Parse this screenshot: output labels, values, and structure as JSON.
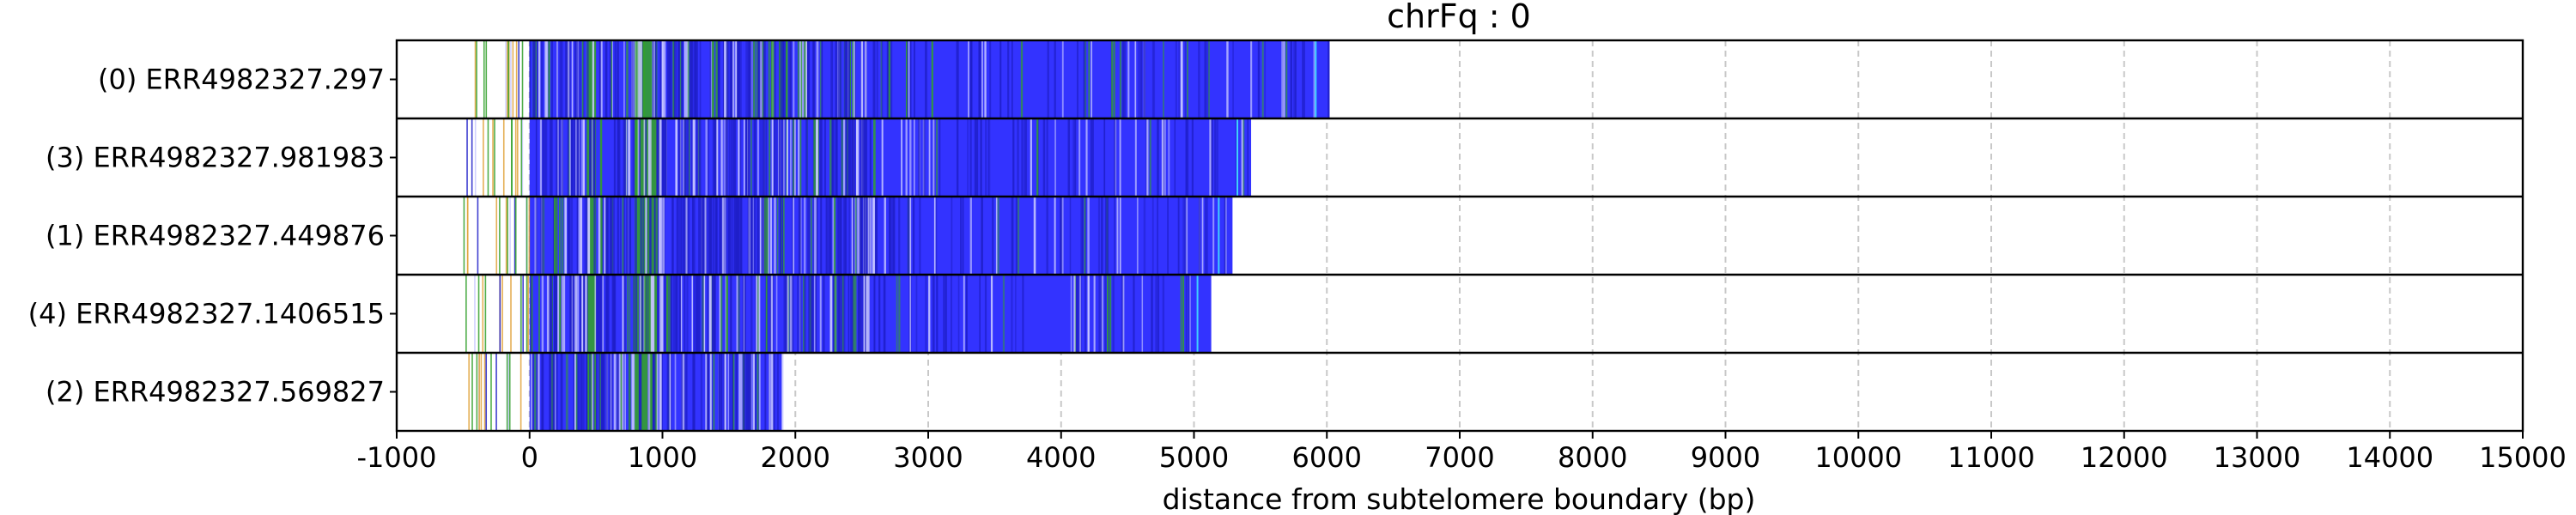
{
  "chart_data": {
    "type": "bar",
    "title": "chrFq : 0",
    "xlabel": "distance from subtelomere boundary (bp)",
    "ylabel": "",
    "xlim": [
      -1000,
      15000
    ],
    "xticks": [
      -1000,
      0,
      1000,
      2000,
      3000,
      4000,
      5000,
      6000,
      7000,
      8000,
      9000,
      10000,
      11000,
      12000,
      13000,
      14000,
      15000
    ],
    "xtick_labels": [
      "-1000",
      "0",
      "1000",
      "2000",
      "3000",
      "4000",
      "5000",
      "6000",
      "7000",
      "8000",
      "9000",
      "10000",
      "11000",
      "12000",
      "13000",
      "14000",
      "15000"
    ],
    "grid": "vertical dashed",
    "colors": {
      "main": "#3333ff",
      "dark": "#1f1fc8",
      "green": "#33a02c",
      "light": "#c9c9ff",
      "cyan": "#3fd0ff",
      "orange": "#e0a23a"
    },
    "reads": [
      {
        "label": "(0) ERR4982327.297",
        "start": -500,
        "end": 6020
      },
      {
        "label": "(3) ERR4982327.981983",
        "start": -500,
        "end": 5430
      },
      {
        "label": "(1) ERR4982327.449876",
        "start": -500,
        "end": 5290
      },
      {
        "label": "(4) ERR4982327.1406515",
        "start": -500,
        "end": 5130
      },
      {
        "label": "(2) ERR4982327.569827",
        "start": -500,
        "end": 1900
      }
    ]
  }
}
